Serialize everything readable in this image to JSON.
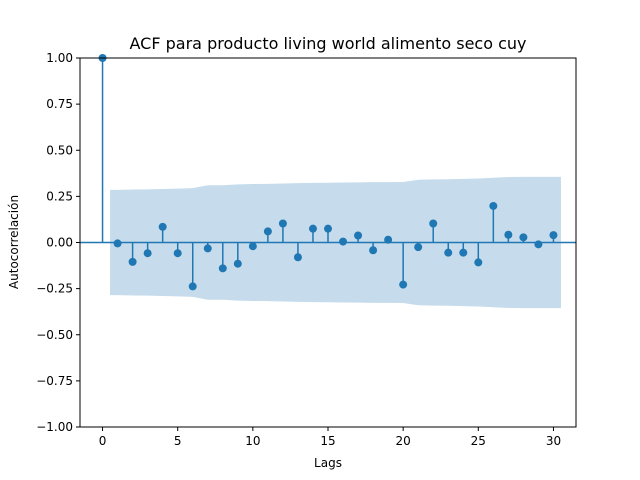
{
  "chart_data": {
    "type": "stem",
    "title": "ACF para producto living world alimento seco cuy",
    "xlabel": "Lags",
    "ylabel": "Autocorrelación",
    "xlim": [
      -1.5,
      31.5
    ],
    "ylim": [
      -1.0,
      1.0
    ],
    "xticks": [
      0,
      5,
      10,
      15,
      20,
      25,
      30
    ],
    "yticks": [
      -1.0,
      -0.75,
      -0.5,
      -0.25,
      0.0,
      0.25,
      0.5,
      0.75,
      1.0
    ],
    "xtick_labels": [
      "0",
      "5",
      "10",
      "15",
      "20",
      "25",
      "30"
    ],
    "ytick_labels": [
      "−1.00",
      "−0.75",
      "−0.50",
      "−0.25",
      "0.00",
      "0.25",
      "0.50",
      "0.75",
      "1.00"
    ],
    "lags": [
      0,
      1,
      2,
      3,
      4,
      5,
      6,
      7,
      8,
      9,
      10,
      11,
      12,
      13,
      14,
      15,
      16,
      17,
      18,
      19,
      20,
      21,
      22,
      23,
      24,
      25,
      26,
      27,
      28,
      29,
      30
    ],
    "acf": [
      1.0,
      -0.005,
      -0.105,
      -0.058,
      0.085,
      -0.058,
      -0.238,
      -0.032,
      -0.14,
      -0.115,
      -0.02,
      0.06,
      0.103,
      -0.08,
      0.075,
      0.075,
      0.005,
      0.038,
      -0.042,
      0.015,
      -0.228,
      -0.025,
      0.103,
      -0.055,
      -0.055,
      -0.108,
      0.198,
      0.042,
      0.028,
      -0.01,
      0.04
    ],
    "confint_lags": [
      0.5,
      1,
      2,
      3,
      4,
      5,
      6,
      7,
      8,
      9,
      10,
      11,
      12,
      13,
      14,
      15,
      16,
      17,
      18,
      19,
      20,
      21,
      22,
      23,
      24,
      25,
      26,
      27,
      28,
      29,
      30.5
    ],
    "confint_upper": [
      0.285,
      0.285,
      0.287,
      0.288,
      0.29,
      0.292,
      0.295,
      0.31,
      0.31,
      0.315,
      0.317,
      0.318,
      0.32,
      0.322,
      0.323,
      0.324,
      0.325,
      0.326,
      0.327,
      0.327,
      0.328,
      0.34,
      0.342,
      0.343,
      0.345,
      0.347,
      0.351,
      0.355,
      0.356,
      0.356,
      0.356
    ],
    "grid": false,
    "legend": "none",
    "colors": {
      "stem": "#1f77b4",
      "confint_fill": "#c6dcec",
      "zero_line": "#1f77b4",
      "axes": "#000000"
    }
  }
}
